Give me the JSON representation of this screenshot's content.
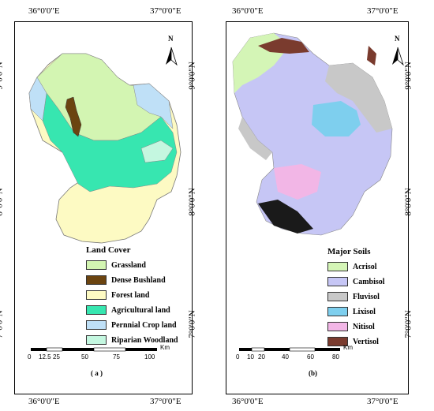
{
  "top_coords": {
    "left": "36°0'0\"E",
    "right": "37°0'0\"E"
  },
  "bottom_coords": {
    "left": "36°0'0\"E",
    "right": "37°0'0\"E"
  },
  "lat_labels": {
    "top": "9°0'0\"N",
    "mid": "8°0'0\"N",
    "bottom": "7°0'0\"N"
  },
  "north_letter": "N",
  "map_a": {
    "panel_label": "( a )",
    "legend_title": "Land Cover",
    "legend": [
      {
        "label": "Grassland",
        "color": "#d3f5b2"
      },
      {
        "label": "Dense Bushland",
        "color": "#6b4410"
      },
      {
        "label": "Forest land",
        "color": "#fdfac3"
      },
      {
        "label": "Agricultural land",
        "color": "#37e6b0"
      },
      {
        "label": "Pernnial Crop land",
        "color": "#bfe0f7"
      },
      {
        "label": "Riparian Woodland",
        "color": "#c4f7e0"
      }
    ],
    "scale_unit": "Km",
    "scale_ticks": [
      "0",
      "12.5",
      "25",
      "50",
      "75",
      "100"
    ]
  },
  "map_b": {
    "panel_label": "(b)",
    "legend_title": "Major Soils",
    "legend": [
      {
        "label": "Acrisol",
        "color": "#d4f5b6"
      },
      {
        "label": "Cambisol",
        "color": "#c6c6f5"
      },
      {
        "label": "Fluvisol",
        "color": "#c8c8c8"
      },
      {
        "label": "Lixisol",
        "color": "#7ecfee"
      },
      {
        "label": "Nitisol",
        "color": "#f2b6e6"
      },
      {
        "label": "Vertisol",
        "color": "#7a3b2e"
      }
    ],
    "scale_unit": "Km",
    "scale_ticks": [
      "0",
      "10",
      "20",
      "40",
      "60",
      "80"
    ]
  }
}
